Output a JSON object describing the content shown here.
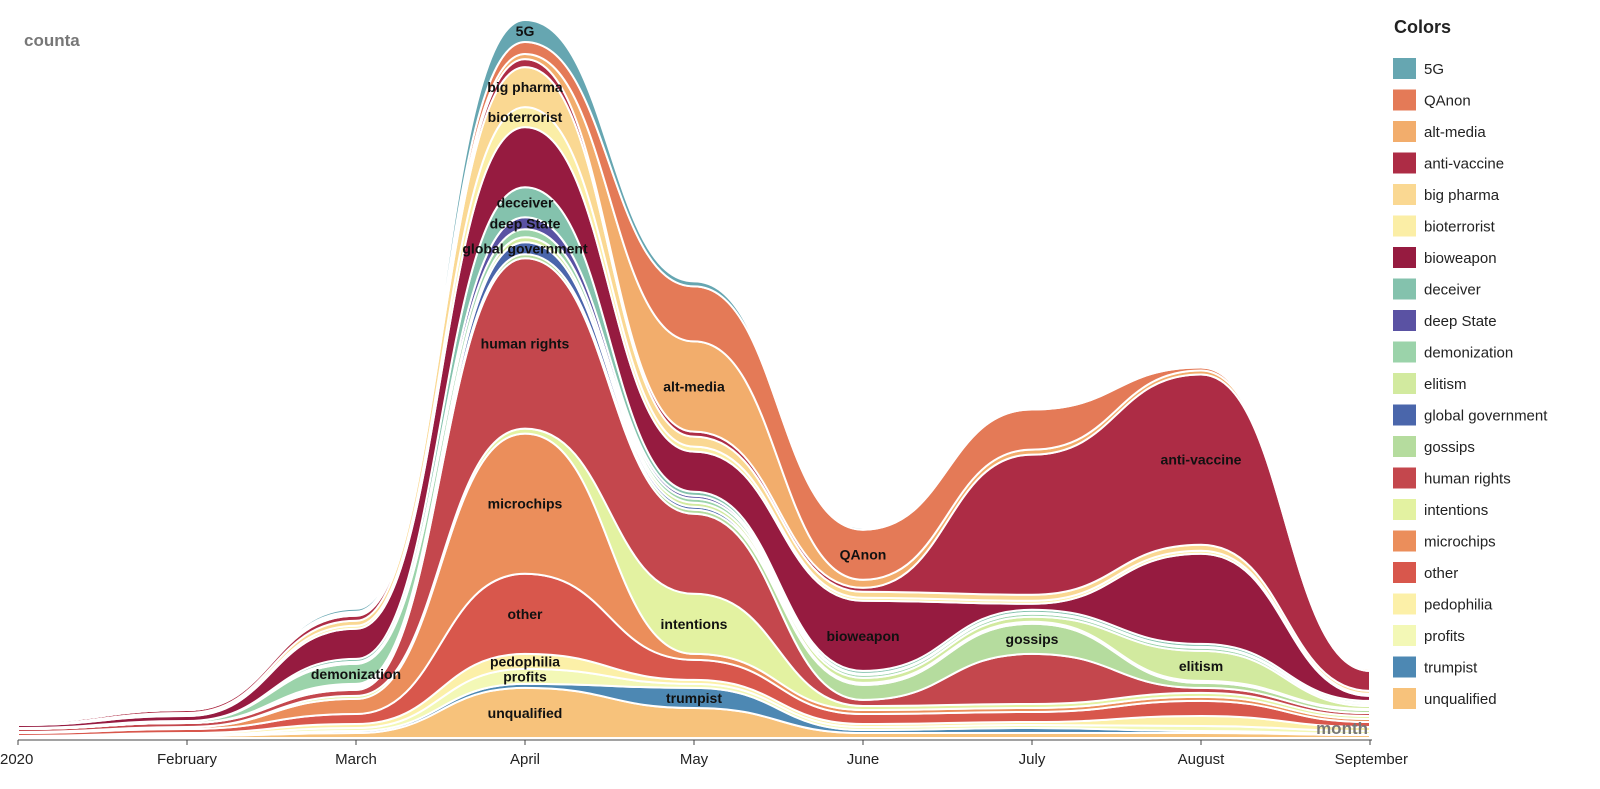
{
  "chart_data": {
    "type": "area",
    "subtype": "streamgraph",
    "y_axis_title": "counta",
    "x_axis_title": "month",
    "legend_title": "Colors",
    "x_ticks": [
      "2020",
      "February",
      "March",
      "April",
      "May",
      "June",
      "July",
      "August",
      "September"
    ],
    "months": [
      "2020",
      "February",
      "March",
      "April",
      "May",
      "June",
      "July",
      "August",
      "September"
    ],
    "series": [
      {
        "name": "5G",
        "color": "#66a6b1",
        "values": [
          0,
          0,
          0.3,
          2.2,
          0.5,
          0.2,
          0.1,
          0.2,
          0.1
        ]
      },
      {
        "name": "QAnon",
        "color": "#e47a57",
        "values": [
          0,
          0,
          0.2,
          1.2,
          5.5,
          5,
          4,
          0.3,
          0.2
        ]
      },
      {
        "name": "alt-media",
        "color": "#f2ad6c",
        "values": [
          0,
          0,
          0.2,
          0.5,
          9,
          0.8,
          0.5,
          0.4,
          0.2
        ]
      },
      {
        "name": "anti-vaccine",
        "color": "#ad2c45",
        "values": [
          0.2,
          0.3,
          0.5,
          0.8,
          0.5,
          0.4,
          14,
          17,
          2
        ]
      },
      {
        "name": "big pharma",
        "color": "#fad892",
        "values": [
          0.1,
          0.2,
          0.5,
          4,
          1,
          0.6,
          0.6,
          0.6,
          0.3
        ]
      },
      {
        "name": "bioterrorist",
        "color": "#fbeea6",
        "values": [
          0,
          0.1,
          0.3,
          2,
          0.5,
          0.3,
          0.3,
          0.3,
          0.2
        ]
      },
      {
        "name": "bioweapon",
        "color": "#961b40",
        "values": [
          0.3,
          0.5,
          3,
          6,
          4,
          7,
          0.6,
          9,
          0.5
        ]
      },
      {
        "name": "deceiver",
        "color": "#84c2ad",
        "values": [
          0,
          0,
          0.3,
          3,
          0.4,
          0.3,
          0.3,
          0.3,
          0.2
        ]
      },
      {
        "name": "deep State",
        "color": "#5a52a3",
        "values": [
          0,
          0,
          0.2,
          1.2,
          0.3,
          0.1,
          0.1,
          0.1,
          0.1
        ]
      },
      {
        "name": "demonization",
        "color": "#9bd3aa",
        "values": [
          0.1,
          0.2,
          2,
          0.8,
          0.4,
          0.3,
          0.3,
          0.3,
          0.2
        ]
      },
      {
        "name": "elitism",
        "color": "#d2ea9f",
        "values": [
          0,
          0,
          0.2,
          0.5,
          0.4,
          0.5,
          0.5,
          3,
          0.3
        ]
      },
      {
        "name": "global government",
        "color": "#4a66ab",
        "values": [
          0,
          0,
          0.2,
          1.2,
          0.3,
          0.2,
          0.2,
          0.2,
          0.1
        ]
      },
      {
        "name": "gossips",
        "color": "#b5dc9e",
        "values": [
          0,
          0,
          0.2,
          0.4,
          0.4,
          1.5,
          3,
          0.5,
          0.3
        ]
      },
      {
        "name": "human rights",
        "color": "#c4474d",
        "values": [
          0.3,
          0.4,
          0.6,
          17,
          8,
          0.6,
          5,
          0.5,
          0.3
        ]
      },
      {
        "name": "intentions",
        "color": "#e3f2a1",
        "values": [
          0,
          0,
          0.3,
          0.5,
          6,
          0.4,
          0.4,
          0.4,
          0.3
        ]
      },
      {
        "name": "microchips",
        "color": "#eb8e5b",
        "values": [
          0.1,
          0.2,
          1.5,
          14,
          0.6,
          0.4,
          0.4,
          0.4,
          0.3
        ]
      },
      {
        "name": "other",
        "color": "#d8574c",
        "values": [
          0.3,
          0.4,
          1,
          8,
          2,
          1,
          1,
          1.5,
          0.5
        ]
      },
      {
        "name": "pedophilia",
        "color": "#fcf0a8",
        "values": [
          0.1,
          0.2,
          0.4,
          1.5,
          0.4,
          0.3,
          0.3,
          1,
          0.4
        ]
      },
      {
        "name": "profits",
        "color": "#f3f8b6",
        "values": [
          0,
          0.1,
          0.3,
          1.5,
          0.4,
          0.3,
          0.3,
          0.5,
          0.3
        ]
      },
      {
        "name": "trumpist",
        "color": "#4d88b3",
        "values": [
          0,
          0,
          0.2,
          0.4,
          2,
          0.3,
          0.5,
          0.2,
          0.1
        ]
      },
      {
        "name": "unqualified",
        "color": "#f7c27b",
        "values": [
          0.1,
          0.2,
          0.5,
          5,
          3,
          0.5,
          0.5,
          0.5,
          0.3
        ]
      }
    ],
    "stream_labels": [
      {
        "text": "human rights",
        "month": 3
      },
      {
        "text": "microchips",
        "month": 3
      },
      {
        "text": "other",
        "month": 3
      },
      {
        "text": "alt-media",
        "month": 4
      },
      {
        "text": "big pharma",
        "month": 3
      },
      {
        "text": "bioweapon",
        "month": 5
      },
      {
        "text": "anti-vaccine",
        "month": 7
      },
      {
        "text": "unqualified",
        "month": 3
      },
      {
        "text": "intentions",
        "month": 4
      },
      {
        "text": "deceiver",
        "month": 3
      },
      {
        "text": "QAnon",
        "month": 5
      },
      {
        "text": "elitism",
        "month": 7
      },
      {
        "text": "bioterrorist",
        "month": 3
      },
      {
        "text": "profits",
        "month": 3
      },
      {
        "text": "pedophilia",
        "month": 3
      },
      {
        "text": "trumpist",
        "month": 4
      },
      {
        "text": "gossips",
        "month": 6
      },
      {
        "text": "demonization",
        "month": 2
      },
      {
        "text": "global government",
        "month": 3
      },
      {
        "text": "5G",
        "month": 3
      },
      {
        "text": "deep State",
        "month": 3
      }
    ]
  }
}
